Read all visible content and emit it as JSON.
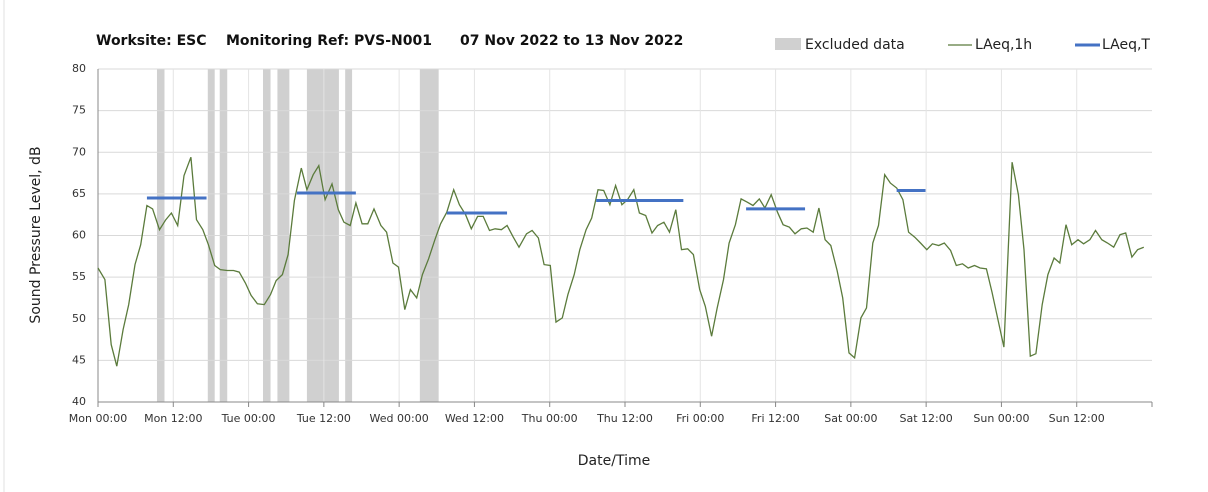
{
  "chart_data": {
    "type": "line",
    "title": [
      "Worksite: ESC",
      "Monitoring Ref: PVS-N001",
      "07 Nov 2022 to 13 Nov 2022"
    ],
    "x_label": "Date/Time",
    "y_label": "Sound Pressure Level, dB",
    "xlim": [
      0,
      168
    ],
    "ylim": [
      40,
      80
    ],
    "yticks": [
      40,
      45,
      50,
      55,
      60,
      65,
      70,
      75,
      80
    ],
    "xticks": [
      {
        "value": 0,
        "label": "Mon 00:00"
      },
      {
        "value": 12,
        "label": "Mon 12:00"
      },
      {
        "value": 24,
        "label": "Tue 00:00"
      },
      {
        "value": 36,
        "label": "Tue 12:00"
      },
      {
        "value": 48,
        "label": "Wed 00:00"
      },
      {
        "value": 60,
        "label": "Wed 12:00"
      },
      {
        "value": 72,
        "label": "Thu 00:00"
      },
      {
        "value": 84,
        "label": "Thu 12:00"
      },
      {
        "value": 96,
        "label": "Fri 00:00"
      },
      {
        "value": 108,
        "label": "Fri 12:00"
      },
      {
        "value": 120,
        "label": "Sat 00:00"
      },
      {
        "value": 132,
        "label": "Sat 12:00"
      },
      {
        "value": 144,
        "label": "Sun 00:00"
      },
      {
        "value": 156,
        "label": "Sun 12:00"
      }
    ],
    "grid": true,
    "excluded": {
      "name": "Excluded data",
      "color": "#d0d0d0",
      "ranges": [
        [
          9.4,
          10.6
        ],
        [
          17.5,
          18.6
        ],
        [
          19.4,
          20.6
        ],
        [
          26.3,
          27.5
        ],
        [
          28.6,
          30.5
        ],
        [
          33.3,
          38.4
        ],
        [
          39.4,
          40.5
        ],
        [
          51.3,
          54.3
        ]
      ]
    },
    "series": [
      {
        "name": "LAeq,1h",
        "color": "#5b7b3c",
        "x": [
          0,
          1.1,
          2.1,
          3.0,
          4.0,
          4.9,
          5.9,
          6.8,
          7.8,
          8.7,
          9.8,
          10.8,
          11.7,
          12.7,
          13.7,
          14.8,
          15.7,
          16.7,
          17.6,
          18.6,
          19.5,
          20.6,
          21.6,
          22.5,
          23.5,
          24.4,
          25.4,
          26.5,
          27.5,
          28.4,
          29.4,
          30.3,
          31.3,
          32.4,
          33.3,
          34.3,
          35.2,
          36.2,
          37.3,
          38.3,
          39.2,
          40.2,
          41.1,
          42.1,
          43.0,
          44.0,
          45.1,
          46.0,
          47.0,
          47.9,
          48.9,
          49.8,
          50.8,
          51.7,
          52.7,
          53.7,
          54.6,
          55.6,
          56.7,
          57.6,
          58.6,
          59.5,
          60.5,
          61.4,
          62.4,
          63.3,
          64.3,
          65.2,
          66.2,
          67.1,
          68.3,
          69.2,
          70.2,
          71.1,
          72.1,
          73.0,
          74.0,
          74.9,
          75.9,
          76.8,
          77.8,
          78.7,
          79.7,
          80.6,
          81.6,
          82.5,
          83.5,
          84.4,
          85.4,
          86.3,
          87.3,
          88.3,
          89.2,
          90.2,
          91.1,
          92.1,
          93.0,
          94.0,
          94.9,
          95.9,
          96.8,
          97.8,
          98.7,
          99.7,
          100.6,
          101.6,
          102.5,
          103.5,
          104.4,
          105.4,
          106.3,
          107.3,
          108.3,
          109.2,
          110.2,
          111.1,
          112.1,
          113.0,
          114.0,
          114.9,
          115.9,
          116.8,
          117.8,
          118.7,
          119.7,
          120.6,
          121.6,
          122.5,
          123.5,
          124.4,
          125.4,
          126.3,
          127.3,
          128.3,
          129.2,
          130.2,
          131.1,
          132.1,
          133.0,
          134.0,
          134.9,
          135.9,
          136.8,
          137.8,
          138.7,
          139.7,
          140.6,
          141.6,
          142.5,
          144.4,
          145.7,
          146.7,
          147.6,
          148.6,
          149.5,
          150.5,
          151.4,
          152.4,
          153.3,
          154.3,
          155.2,
          156.2,
          157.1,
          158.1,
          159.0,
          160.0,
          160.9,
          161.9,
          162.9,
          163.8,
          164.8,
          165.7,
          166.7
        ],
        "values": [
          56.1,
          54.7,
          46.9,
          44.3,
          48.7,
          51.7,
          56.5,
          58.9,
          63.6,
          63.2,
          60.7,
          61.9,
          62.7,
          61.2,
          67.2,
          69.4,
          61.9,
          60.7,
          58.9,
          56.4,
          55.9,
          55.8,
          55.8,
          55.6,
          54.3,
          52.8,
          51.8,
          51.7,
          52.9,
          54.6,
          55.3,
          57.7,
          64.2,
          68.1,
          65.5,
          67.3,
          68.4,
          64.3,
          66.2,
          63.1,
          61.6,
          61.2,
          63.9,
          61.4,
          61.4,
          63.2,
          61.2,
          60.4,
          56.7,
          56.2,
          51.1,
          53.5,
          52.5,
          55.3,
          57.2,
          59.5,
          61.4,
          62.8,
          65.5,
          63.7,
          62.5,
          60.8,
          62.3,
          62.3,
          60.6,
          60.8,
          60.7,
          61.2,
          59.8,
          58.6,
          60.2,
          60.6,
          59.7,
          56.5,
          56.4,
          49.6,
          50.1,
          52.9,
          55.3,
          58.3,
          60.7,
          62.1,
          65.5,
          65.4,
          63.7,
          66.0,
          63.7,
          64.3,
          65.5,
          62.7,
          62.4,
          60.3,
          61.2,
          61.6,
          60.4,
          63.1,
          58.3,
          58.4,
          57.7,
          53.5,
          51.5,
          47.9,
          51.3,
          54.7,
          59.1,
          61.3,
          64.4,
          64.0,
          63.6,
          64.4,
          63.3,
          64.9,
          62.8,
          61.3,
          61.0,
          60.2,
          60.8,
          60.9,
          60.4,
          63.3,
          59.5,
          58.8,
          55.8,
          52.5,
          45.9,
          45.3,
          50.1,
          51.3,
          59.1,
          61.2,
          67.3,
          66.3,
          65.7,
          64.3,
          60.4,
          59.8,
          59.1,
          58.3,
          59.0,
          58.8,
          59.1,
          58.2,
          56.4,
          56.6,
          56.1,
          56.4,
          56.1,
          56.0,
          53.2,
          46.6,
          68.8,
          64.9,
          58.3,
          45.5,
          45.8,
          51.7,
          55.3,
          57.3,
          56.7,
          61.3,
          58.9,
          59.5,
          59.0,
          59.5,
          60.6,
          59.5,
          59.1,
          58.6,
          60.1,
          60.3,
          57.4,
          58.3,
          58.6
        ]
      },
      {
        "name": "LAeq,T",
        "color": "#4472c4",
        "segments": [
          {
            "x": [
              7.8,
              17.3
            ],
            "value": 64.5
          },
          {
            "x": [
              31.7,
              41.1
            ],
            "value": 65.1
          },
          {
            "x": [
              55.6,
              65.2
            ],
            "value": 62.7
          },
          {
            "x": [
              79.4,
              93.3
            ],
            "value": 64.2
          },
          {
            "x": [
              103.3,
              112.7
            ],
            "value": 63.2
          },
          {
            "x": [
              127.3,
              131.9
            ],
            "value": 65.4
          }
        ]
      }
    ]
  }
}
